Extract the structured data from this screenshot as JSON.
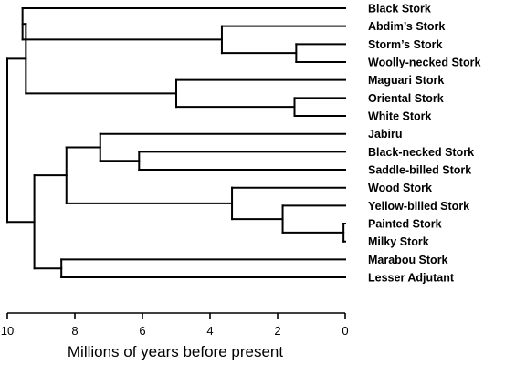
{
  "chart_data": {
    "type": "dendrogram",
    "xlabel": "Millions of years before present",
    "x_axis": {
      "min": 0,
      "max": 10,
      "reversed": true,
      "ticks": [
        10,
        8,
        6,
        4,
        2,
        0
      ]
    },
    "leaves": [
      "Black Stork",
      "Abdim’s Stork",
      "Storm’s Stork",
      "Woolly-necked Stork",
      "Maguari Stork",
      "Oriental Stork",
      "White Stork",
      "Jabiru",
      "Black-necked Stork",
      "Saddle-billed Stork",
      "Wood Stork",
      "Yellow-billed Stork",
      "Painted Stork",
      "Milky Stork",
      "Marabou Stork",
      "Lesser Adjutant"
    ],
    "tree": {
      "age": 10.0,
      "children": [
        {
          "age": 9.45,
          "children": [
            {
              "age": 9.55,
              "children": [
                {
                  "leaf": 0
                },
                {
                  "age": 3.65,
                  "children": [
                    {
                      "leaf": 1
                    },
                    {
                      "age": 1.45,
                      "children": [
                        {
                          "leaf": 2
                        },
                        {
                          "leaf": 3
                        }
                      ]
                    }
                  ]
                }
              ]
            },
            {
              "age": 5.0,
              "children": [
                {
                  "leaf": 4
                },
                {
                  "age": 1.5,
                  "children": [
                    {
                      "leaf": 5
                    },
                    {
                      "leaf": 6
                    }
                  ]
                }
              ]
            }
          ]
        },
        {
          "age": 9.2,
          "children": [
            {
              "age": 8.25,
              "children": [
                {
                  "age": 7.25,
                  "children": [
                    {
                      "leaf": 7
                    },
                    {
                      "age": 6.1,
                      "children": [
                        {
                          "leaf": 8
                        },
                        {
                          "leaf": 9
                        }
                      ]
                    }
                  ]
                },
                {
                  "age": 3.35,
                  "children": [
                    {
                      "leaf": 10
                    },
                    {
                      "age": 1.85,
                      "children": [
                        {
                          "leaf": 11
                        },
                        {
                          "age": 0.05,
                          "children": [
                            {
                              "leaf": 12
                            },
                            {
                              "leaf": 13
                            }
                          ]
                        }
                      ]
                    }
                  ]
                }
              ]
            },
            {
              "age": 8.4,
              "children": [
                {
                  "leaf": 14
                },
                {
                  "leaf": 15
                }
              ]
            }
          ]
        }
      ]
    }
  }
}
